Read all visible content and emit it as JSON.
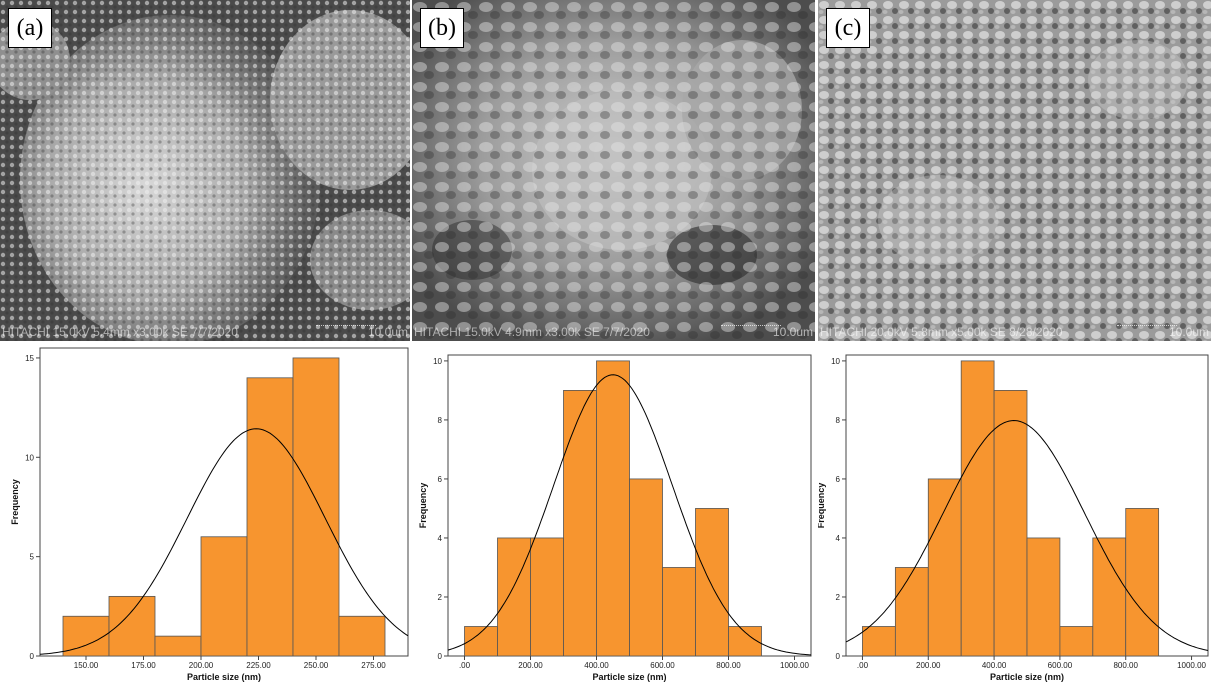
{
  "panels": [
    {
      "label": "(a)",
      "info": "HITACHI 15.0kV 5.4mm x3.00k SE 7/7/2020",
      "scale": "10.0um"
    },
    {
      "label": "(b)",
      "info": "HITACHI 15.0kV 4.9mm x3.00k SE 7/7/2020",
      "scale": "10.0um"
    },
    {
      "label": "(c)",
      "info": "HITACHI 20.0kV 5.8mm x5.00k SE 8/28/2020",
      "scale": "10.0um"
    }
  ],
  "colors": {
    "bar": "#f7952f",
    "bar_stroke": "#555555",
    "curve": "#000000"
  },
  "chart_data": [
    {
      "type": "bar",
      "title": "",
      "xlabel": "Particle size (nm)",
      "ylabel": "Frequency",
      "xlim": [
        130,
        290
      ],
      "ylim": [
        0,
        15.5
      ],
      "xticks": [
        150,
        175,
        200,
        225,
        250,
        275
      ],
      "xtick_labels": [
        "150.00",
        "175.00",
        "200.00",
        "225.00",
        "250.00",
        "275.00"
      ],
      "yticks": [
        0,
        5,
        10,
        15
      ],
      "ytick_labels": [
        "0",
        "5",
        "10",
        "15"
      ],
      "bins": [
        [
          140,
          160
        ],
        [
          160,
          180
        ],
        [
          180,
          200
        ],
        [
          200,
          220
        ],
        [
          220,
          240
        ],
        [
          240,
          260
        ],
        [
          260,
          280
        ]
      ],
      "values": [
        2,
        3,
        1,
        6,
        14,
        15,
        2
      ],
      "normal_curve": {
        "mean": 224,
        "sd": 30,
        "n": 43,
        "binwidth": 20
      }
    },
    {
      "type": "bar",
      "title": "",
      "xlabel": "Particle size (nm)",
      "ylabel": "Frequency",
      "xlim": [
        -50,
        1050
      ],
      "ylim": [
        0,
        10.2
      ],
      "xticks": [
        0,
        200,
        400,
        600,
        800,
        1000
      ],
      "xtick_labels": [
        ".00",
        "200.00",
        "400.00",
        "600.00",
        "800.00",
        "1000.00"
      ],
      "yticks": [
        0,
        2,
        4,
        6,
        8,
        10
      ],
      "ytick_labels": [
        "0",
        "2",
        "4",
        "6",
        "8",
        "10"
      ],
      "bins": [
        [
          0,
          100
        ],
        [
          100,
          200
        ],
        [
          200,
          300
        ],
        [
          300,
          400
        ],
        [
          400,
          500
        ],
        [
          500,
          600
        ],
        [
          600,
          700
        ],
        [
          700,
          800
        ],
        [
          800,
          900
        ]
      ],
      "values": [
        1,
        4,
        4,
        9,
        10,
        6,
        3,
        5,
        1
      ],
      "normal_curve": {
        "mean": 450,
        "sd": 180,
        "n": 43,
        "binwidth": 100
      }
    },
    {
      "type": "bar",
      "title": "",
      "xlabel": "Particle size (nm)",
      "ylabel": "Frequency",
      "xlim": [
        -50,
        1050
      ],
      "ylim": [
        0,
        10.2
      ],
      "xticks": [
        0,
        200,
        400,
        600,
        800,
        1000
      ],
      "xtick_labels": [
        ".00",
        "200.00",
        "400.00",
        "600.00",
        "800.00",
        "1000.00"
      ],
      "yticks": [
        0,
        2,
        4,
        6,
        8,
        10
      ],
      "ytick_labels": [
        "0",
        "2",
        "4",
        "6",
        "8",
        "10"
      ],
      "bins": [
        [
          0,
          100
        ],
        [
          100,
          200
        ],
        [
          200,
          300
        ],
        [
          300,
          400
        ],
        [
          400,
          500
        ],
        [
          500,
          600
        ],
        [
          600,
          700
        ],
        [
          700,
          800
        ],
        [
          800,
          900
        ]
      ],
      "values": [
        1,
        3,
        6,
        10,
        9,
        4,
        1,
        4,
        5
      ],
      "normal_curve": {
        "mean": 460,
        "sd": 215,
        "n": 43,
        "binwidth": 100
      }
    }
  ]
}
